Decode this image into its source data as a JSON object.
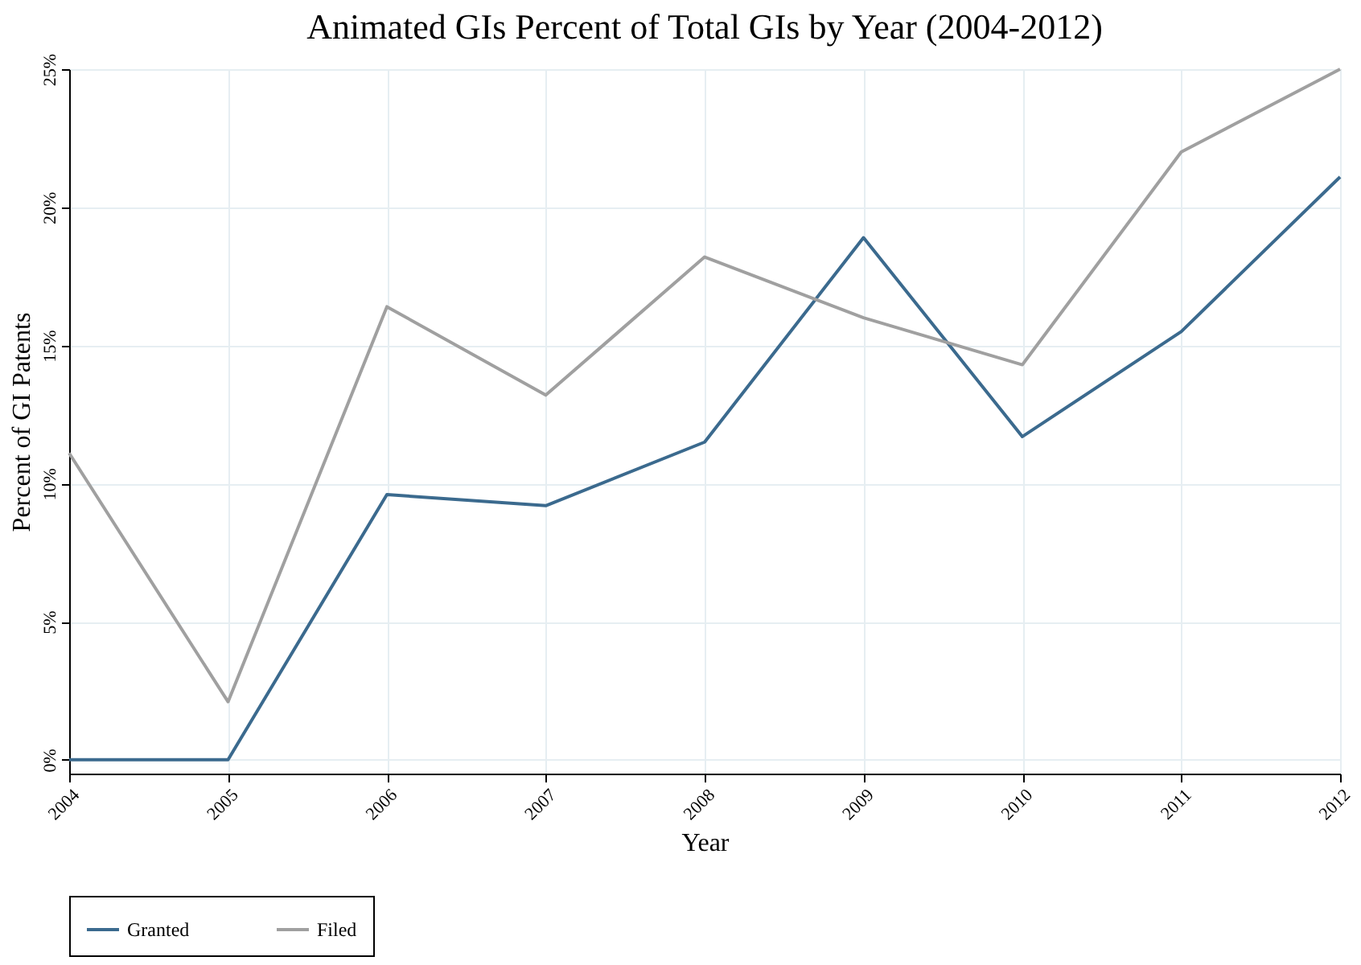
{
  "chart_data": {
    "type": "line",
    "title": "Animated GIs Percent of Total GIs by Year (2004-2012)",
    "xlabel": "Year",
    "ylabel": "Percent of GI Patents",
    "x": [
      2004,
      2005,
      2006,
      2007,
      2008,
      2009,
      2010,
      2011,
      2012
    ],
    "series": [
      {
        "name": "Granted",
        "color": "#3b6a8e",
        "values": [
          0,
          0,
          9.6,
          9.2,
          11.5,
          18.9,
          11.7,
          15.5,
          21.1
        ]
      },
      {
        "name": "Filed",
        "color": "#a0a0a0",
        "values": [
          11.1,
          2.1,
          16.4,
          13.2,
          18.2,
          16.0,
          14.3,
          22.0,
          25.0
        ]
      }
    ],
    "xlim": [
      2004,
      2012
    ],
    "xticks": [
      2004,
      2005,
      2006,
      2007,
      2008,
      2009,
      2010,
      2011,
      2012
    ],
    "ylim": [
      -0.5,
      25
    ],
    "yticks": [
      {
        "value": 0,
        "label": "0%"
      },
      {
        "value": 5,
        "label": "5%"
      },
      {
        "value": 10,
        "label": "10%"
      },
      {
        "value": 15,
        "label": "15%"
      },
      {
        "value": 20,
        "label": "20%"
      },
      {
        "value": 25,
        "label": "25%"
      }
    ],
    "grid": true,
    "legend": "bottom",
    "marker": "none",
    "line_style": "solid"
  }
}
